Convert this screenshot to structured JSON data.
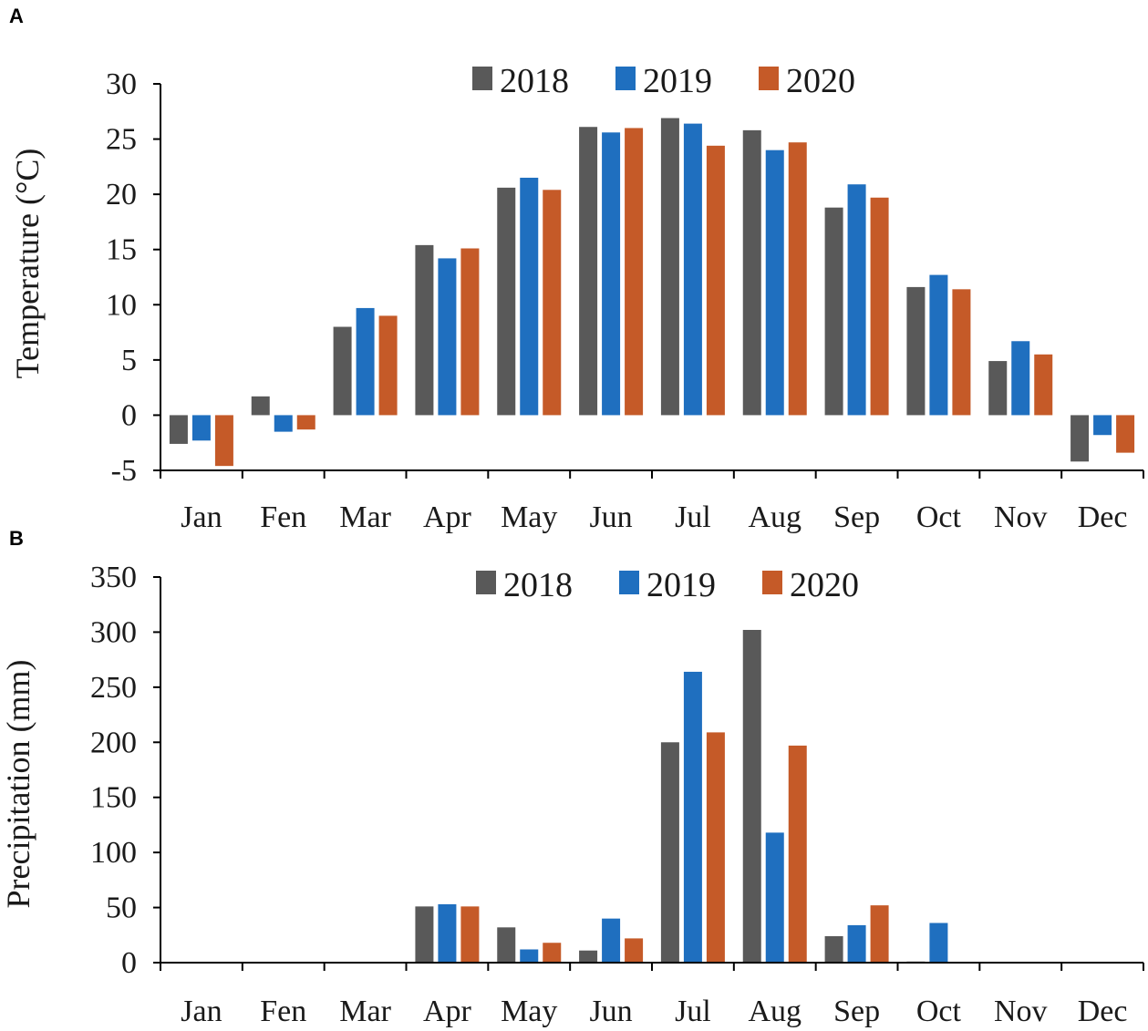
{
  "chart_data": [
    {
      "panel": "A",
      "type": "bar",
      "title": "",
      "xlabel": "",
      "ylabel": "Temperature (°C)",
      "ylim": [
        -5,
        30
      ],
      "yticks": [
        "-5",
        "0",
        "5",
        "10",
        "15",
        "20",
        "25",
        "30"
      ],
      "grid": false,
      "legend": "top-center",
      "categories": [
        "Jan",
        "Fen",
        "Mar",
        "Apr",
        "May",
        "Jun",
        "Jul",
        "Aug",
        "Sep",
        "Oct",
        "Nov",
        "Dec"
      ],
      "series": [
        {
          "name": "2018",
          "color": "#595959",
          "values": [
            -2.6,
            1.7,
            8.0,
            15.4,
            20.6,
            26.1,
            26.9,
            25.8,
            18.8,
            11.6,
            4.9,
            -4.2
          ]
        },
        {
          "name": "2019",
          "color": "#1f6fbf",
          "values": [
            -2.3,
            -1.5,
            9.7,
            14.2,
            21.5,
            25.6,
            26.4,
            24.0,
            20.9,
            12.7,
            6.7,
            -1.8
          ]
        },
        {
          "name": "2020",
          "color": "#c55a28",
          "values": [
            -4.6,
            -1.3,
            9.0,
            15.1,
            20.4,
            26.0,
            24.4,
            24.7,
            19.7,
            11.4,
            5.5,
            -3.4
          ]
        }
      ]
    },
    {
      "panel": "B",
      "type": "bar",
      "title": "",
      "xlabel": "",
      "ylabel": "Precipitation (mm)",
      "ylim": [
        0,
        350
      ],
      "yticks": [
        "0",
        "50",
        "100",
        "150",
        "200",
        "250",
        "300",
        "350"
      ],
      "grid": false,
      "legend": "top-center",
      "categories": [
        "Jan",
        "Fen",
        "Mar",
        "Apr",
        "May",
        "Jun",
        "Jul",
        "Aug",
        "Sep",
        "Oct",
        "Nov",
        "Dec"
      ],
      "series": [
        {
          "name": "2018",
          "color": "#595959",
          "values": [
            0,
            0,
            0,
            51,
            32,
            11,
            200,
            302,
            24,
            1,
            0,
            0
          ]
        },
        {
          "name": "2019",
          "color": "#1f6fbf",
          "values": [
            0,
            0,
            0,
            53,
            12,
            40,
            264,
            118,
            34,
            36,
            0,
            0
          ]
        },
        {
          "name": "2020",
          "color": "#c55a28",
          "values": [
            0,
            0,
            0,
            51,
            18,
            22,
            209,
            197,
            52,
            0,
            0,
            0
          ]
        }
      ]
    }
  ]
}
